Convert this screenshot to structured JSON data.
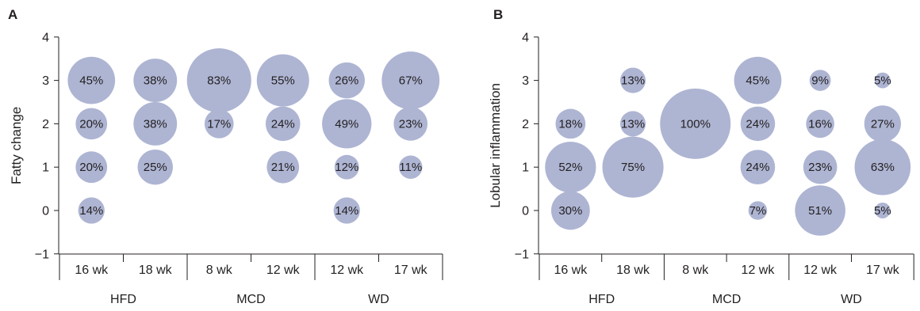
{
  "chart_data": [
    {
      "type": "bubble",
      "panel_label": "A",
      "ylabel": "Fatty change",
      "ylim": [
        -1,
        4
      ],
      "yticks": [
        "−1",
        "0",
        "1",
        "2",
        "3",
        "4"
      ],
      "categories": [
        "16 wk",
        "18 wk",
        "8 wk",
        "12 wk",
        "12 wk",
        "17 wk"
      ],
      "groups": [
        {
          "name": "HFD",
          "span": [
            0,
            1
          ]
        },
        {
          "name": "MCD",
          "span": [
            2,
            3
          ]
        },
        {
          "name": "WD",
          "span": [
            4,
            5
          ]
        }
      ],
      "color": "#aeb5d3",
      "points": [
        {
          "c": 0,
          "y": 3,
          "value": 45,
          "label": "45%"
        },
        {
          "c": 0,
          "y": 2,
          "value": 20,
          "label": "20%"
        },
        {
          "c": 0,
          "y": 1,
          "value": 20,
          "label": "20%"
        },
        {
          "c": 0,
          "y": 0,
          "value": 14,
          "label": "14%"
        },
        {
          "c": 1,
          "y": 3,
          "value": 38,
          "label": "38%"
        },
        {
          "c": 1,
          "y": 2,
          "value": 38,
          "label": "38%"
        },
        {
          "c": 1,
          "y": 1,
          "value": 25,
          "label": "25%"
        },
        {
          "c": 2,
          "y": 3,
          "value": 83,
          "label": "83%"
        },
        {
          "c": 2,
          "y": 2,
          "value": 17,
          "label": "17%"
        },
        {
          "c": 3,
          "y": 3,
          "value": 55,
          "label": "55%"
        },
        {
          "c": 3,
          "y": 2,
          "value": 24,
          "label": "24%"
        },
        {
          "c": 3,
          "y": 1,
          "value": 21,
          "label": "21%"
        },
        {
          "c": 4,
          "y": 3,
          "value": 26,
          "label": "26%"
        },
        {
          "c": 4,
          "y": 2,
          "value": 49,
          "label": "49%"
        },
        {
          "c": 4,
          "y": 1,
          "value": 12,
          "label": "12%"
        },
        {
          "c": 4,
          "y": 0,
          "value": 14,
          "label": "14%"
        },
        {
          "c": 5,
          "y": 3,
          "value": 67,
          "label": "67%"
        },
        {
          "c": 5,
          "y": 2,
          "value": 23,
          "label": "23%"
        },
        {
          "c": 5,
          "y": 1,
          "value": 11,
          "label": "11%"
        }
      ]
    },
    {
      "type": "bubble",
      "panel_label": "B",
      "ylabel": "Lobular inflammation",
      "ylim": [
        -1,
        4
      ],
      "yticks": [
        "−1",
        "0",
        "1",
        "2",
        "3",
        "4"
      ],
      "categories": [
        "16 wk",
        "18 wk",
        "8 wk",
        "12 wk",
        "12 wk",
        "17 wk"
      ],
      "groups": [
        {
          "name": "HFD",
          "span": [
            0,
            1
          ]
        },
        {
          "name": "MCD",
          "span": [
            2,
            3
          ]
        },
        {
          "name": "WD",
          "span": [
            4,
            5
          ]
        }
      ],
      "color": "#aeb5d3",
      "points": [
        {
          "c": 0,
          "y": 2,
          "value": 18,
          "label": "18%"
        },
        {
          "c": 0,
          "y": 1,
          "value": 52,
          "label": "52%"
        },
        {
          "c": 0,
          "y": 0,
          "value": 30,
          "label": "30%"
        },
        {
          "c": 1,
          "y": 3,
          "value": 13,
          "label": "13%"
        },
        {
          "c": 1,
          "y": 2,
          "value": 13,
          "label": "13%"
        },
        {
          "c": 1,
          "y": 1,
          "value": 75,
          "label": "75%"
        },
        {
          "c": 2,
          "y": 2,
          "value": 100,
          "label": "100%"
        },
        {
          "c": 3,
          "y": 3,
          "value": 45,
          "label": "45%"
        },
        {
          "c": 3,
          "y": 2,
          "value": 24,
          "label": "24%"
        },
        {
          "c": 3,
          "y": 1,
          "value": 24,
          "label": "24%"
        },
        {
          "c": 3,
          "y": 0,
          "value": 7,
          "label": "7%"
        },
        {
          "c": 4,
          "y": 3,
          "value": 9,
          "label": "9%"
        },
        {
          "c": 4,
          "y": 2,
          "value": 16,
          "label": "16%"
        },
        {
          "c": 4,
          "y": 1,
          "value": 23,
          "label": "23%"
        },
        {
          "c": 4,
          "y": 0,
          "value": 51,
          "label": "51%"
        },
        {
          "c": 5,
          "y": 3,
          "value": 5,
          "label": "5%"
        },
        {
          "c": 5,
          "y": 2,
          "value": 27,
          "label": "27%"
        },
        {
          "c": 5,
          "y": 1,
          "value": 63,
          "label": "63%"
        },
        {
          "c": 5,
          "y": 0,
          "value": 5,
          "label": "5%"
        }
      ]
    }
  ]
}
